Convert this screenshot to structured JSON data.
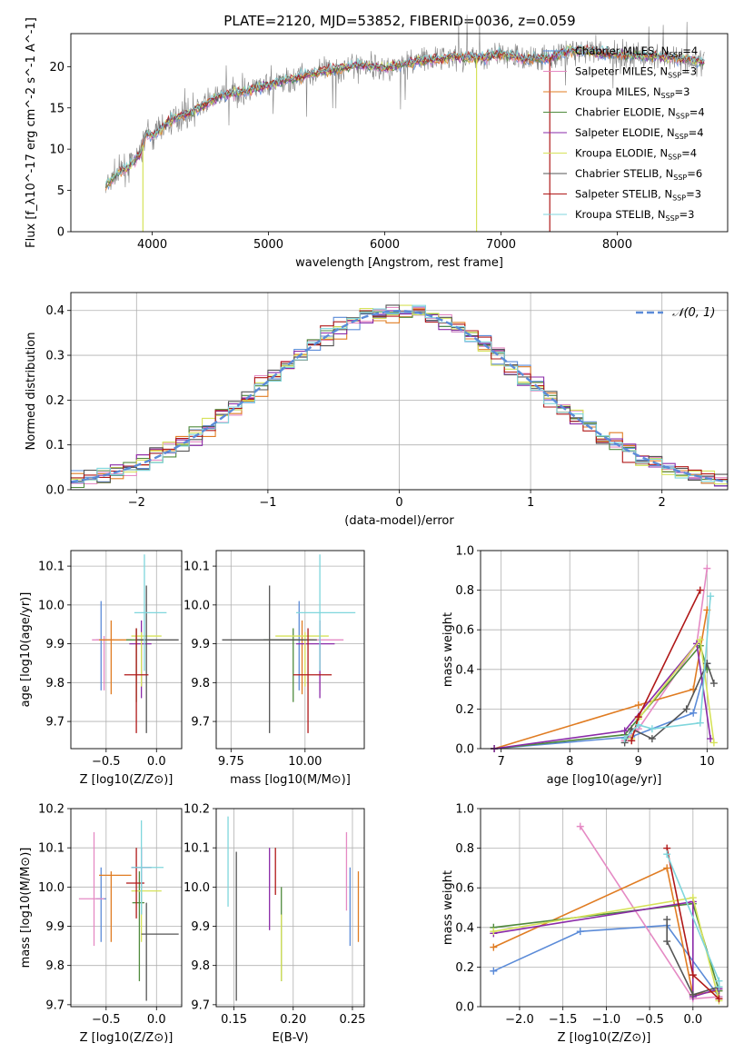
{
  "figure": {
    "title": "PLATE=2120, MJD=53852, FIBERID=0036, z=0.059"
  },
  "colors": {
    "chabrier_miles": "#5b8bd8",
    "salpeter_miles": "#e58ac4",
    "kroupa_miles": "#e07c22",
    "chabrier_elodie": "#4f8a3c",
    "salpeter_elodie": "#8a2aa8",
    "kroupa_elodie": "#d6e25a",
    "chabrier_stelib": "#555555",
    "salpeter_stelib": "#b01818",
    "kroupa_stelib": "#7fd6dc",
    "normal_curve": "#5b8bd8",
    "grid": "#b0b0b0",
    "data_spectrum": "#808080"
  },
  "chart_data": [
    {
      "id": "spectrum",
      "type": "line",
      "xlabel": "wavelength [Angstrom, rest frame]",
      "ylabel": "Flux [f_λ10^-17 erg cm^-2 s^-1 A^-1]",
      "xlim": [
        3300,
        8950
      ],
      "ylim": [
        0,
        24
      ],
      "xticks": [
        4000,
        5000,
        6000,
        7000,
        8000
      ],
      "yticks": [
        0,
        5,
        10,
        15,
        20
      ],
      "grid": false,
      "legend_position": "right",
      "continuum_points": {
        "x": [
          3600,
          3700,
          3800,
          3900,
          3950,
          4000,
          4100,
          4200,
          4300,
          4400,
          4600,
          4800,
          5000,
          5200,
          5400,
          5600,
          5800,
          6000,
          6200,
          6400,
          6600,
          6800,
          7000,
          7200,
          7400,
          7600,
          8000,
          8400,
          8800
        ],
        "y": [
          5.5,
          7.0,
          8.0,
          9.5,
          12.0,
          11.5,
          12.8,
          13.8,
          14.2,
          15.0,
          16.5,
          17.0,
          17.8,
          18.5,
          19.2,
          19.8,
          20.2,
          19.8,
          20.5,
          20.8,
          21.2,
          21.0,
          21.5,
          21.0,
          21.0,
          22.0,
          21.5,
          21.2,
          20.5
        ]
      },
      "legend": [
        "Chabrier MILES, N_SSP=4",
        "Salpeter MILES, N_SSP=3",
        "Kroupa MILES, N_SSP=3",
        "Chabrier ELODIE, N_SSP=4",
        "Salpeter ELODIE, N_SSP=4",
        "Kroupa ELODIE, N_SSP=4",
        "Chabrier STELIB, N_SSP=6",
        "Salpeter STELIB, N_SSP=3",
        "Kroupa STELIB, N_SSP=3"
      ]
    },
    {
      "id": "residuals",
      "type": "step",
      "xlabel": "(data-model)/error",
      "ylabel": "Normed distribution",
      "xlim": [
        -2.5,
        2.5
      ],
      "ylim": [
        0,
        0.44
      ],
      "xticks": [
        -2,
        -1,
        0,
        1,
        2
      ],
      "yticks": [
        0.0,
        0.1,
        0.2,
        0.3,
        0.4
      ],
      "grid": true,
      "legend": "𝒩(0, 1)",
      "legend_position": "top-right",
      "bin_width": 0.1
    },
    {
      "id": "age_vs_Z",
      "type": "errorbar",
      "xlabel": "Z [log10(Z/Z⊙)]",
      "ylabel": "age  [log10(age/yr)]",
      "xlim": [
        -0.85,
        0.25
      ],
      "ylim": [
        9.63,
        10.14
      ],
      "xticks": [
        -0.5,
        0.0
      ],
      "yticks": [
        9.7,
        9.8,
        9.9,
        10.0,
        10.1
      ],
      "grid": true,
      "points": [
        {
          "model": "chabrier_miles",
          "x": -0.55,
          "xerr": [
            0.05,
            0.05
          ],
          "y": 9.91,
          "yerr": [
            0.13,
            0.1
          ]
        },
        {
          "model": "salpeter_miles",
          "x": -0.52,
          "xerr": [
            0.12,
            0.1
          ],
          "y": 9.91,
          "yerr": [
            0.13,
            0.01
          ]
        },
        {
          "model": "kroupa_miles",
          "x": -0.45,
          "xerr": [
            0.12,
            0.2
          ],
          "y": 9.91,
          "yerr": [
            0.14,
            0.05
          ]
        },
        {
          "model": "chabrier_elodie",
          "x": -0.2,
          "xerr": [
            0.1,
            0.1
          ],
          "y": 9.91,
          "yerr": [
            0.16,
            0.03
          ]
        },
        {
          "model": "salpeter_elodie",
          "x": -0.15,
          "xerr": [
            0.12,
            0.1
          ],
          "y": 9.9,
          "yerr": [
            0.14,
            0.06
          ]
        },
        {
          "model": "kroupa_elodie",
          "x": -0.15,
          "xerr": [
            0.1,
            0.2
          ],
          "y": 9.92,
          "yerr": [
            0.13,
            0.01
          ]
        },
        {
          "model": "chabrier_stelib",
          "x": -0.1,
          "xerr": [
            0.1,
            0.32
          ],
          "y": 9.91,
          "yerr": [
            0.24,
            0.14
          ]
        },
        {
          "model": "salpeter_stelib",
          "x": -0.2,
          "xerr": [
            0.12,
            0.12
          ],
          "y": 9.82,
          "yerr": [
            0.15,
            0.12
          ]
        },
        {
          "model": "kroupa_stelib",
          "x": -0.12,
          "xerr": [
            0.1,
            0.22
          ],
          "y": 9.98,
          "yerr": [
            0.15,
            0.15
          ]
        }
      ]
    },
    {
      "id": "age_vs_mass",
      "type": "errorbar",
      "xlabel": "mass [log10(M/M⊙)]",
      "ylabel": "",
      "xlim": [
        9.7,
        10.2
      ],
      "ylim": [
        9.63,
        10.14
      ],
      "xticks": [
        9.75,
        10.0
      ],
      "yticks": [
        9.7,
        9.8,
        9.9,
        10.0,
        10.1
      ],
      "grid": true,
      "points": [
        {
          "model": "chabrier_miles",
          "x": 9.98,
          "xerr": [
            0.12,
            0.04
          ],
          "y": 9.91,
          "yerr": [
            0.13,
            0.1
          ]
        },
        {
          "model": "salpeter_miles",
          "x": 10.05,
          "xerr": [
            0.08,
            0.08
          ],
          "y": 9.91,
          "yerr": [
            0.13,
            0.01
          ]
        },
        {
          "model": "kroupa_miles",
          "x": 9.99,
          "xerr": [
            0.12,
            0.04
          ],
          "y": 9.91,
          "yerr": [
            0.14,
            0.05
          ]
        },
        {
          "model": "chabrier_elodie",
          "x": 9.96,
          "xerr": [
            0.1,
            0.04
          ],
          "y": 9.91,
          "yerr": [
            0.16,
            0.03
          ]
        },
        {
          "model": "salpeter_elodie",
          "x": 10.05,
          "xerr": [
            0.08,
            0.05
          ],
          "y": 9.9,
          "yerr": [
            0.14,
            0.06
          ]
        },
        {
          "model": "kroupa_elodie",
          "x": 10.0,
          "xerr": [
            0.1,
            0.08
          ],
          "y": 9.92,
          "yerr": [
            0.13,
            0.01
          ]
        },
        {
          "model": "chabrier_stelib",
          "x": 9.88,
          "xerr": [
            0.16,
            0.16
          ],
          "y": 9.91,
          "yerr": [
            0.24,
            0.14
          ]
        },
        {
          "model": "salpeter_stelib",
          "x": 10.01,
          "xerr": [
            0.05,
            0.08
          ],
          "y": 9.82,
          "yerr": [
            0.15,
            0.12
          ]
        },
        {
          "model": "kroupa_stelib",
          "x": 10.05,
          "xerr": [
            0.08,
            0.12
          ],
          "y": 9.98,
          "yerr": [
            0.15,
            0.15
          ]
        }
      ]
    },
    {
      "id": "mw_vs_age",
      "type": "line",
      "xlabel": "age  [log10(age/yr)]",
      "ylabel": "mass weight",
      "xlim": [
        6.7,
        10.3
      ],
      "ylim": [
        0,
        1.0
      ],
      "xticks": [
        7,
        8,
        9,
        10
      ],
      "yticks": [
        0.0,
        0.2,
        0.4,
        0.6,
        0.8,
        1.0
      ],
      "grid": true,
      "series": [
        {
          "model": "chabrier_miles",
          "x": [
            6.9,
            8.9,
            9.8,
            10.0
          ],
          "y": [
            0.0,
            0.06,
            0.18,
            0.43
          ]
        },
        {
          "model": "salpeter_miles",
          "x": [
            8.8,
            9.0,
            9.85,
            10.0
          ],
          "y": [
            0.04,
            0.1,
            0.53,
            0.91
          ]
        },
        {
          "model": "kroupa_miles",
          "x": [
            6.9,
            9.0,
            9.8,
            10.0
          ],
          "y": [
            0.0,
            0.22,
            0.3,
            0.7
          ]
        },
        {
          "model": "chabrier_elodie",
          "x": [
            6.9,
            8.8,
            9.9,
            10.0
          ],
          "y": [
            0.0,
            0.07,
            0.52,
            0.4
          ]
        },
        {
          "model": "salpeter_elodie",
          "x": [
            6.9,
            8.8,
            9.85,
            10.05
          ],
          "y": [
            0.0,
            0.09,
            0.53,
            0.05
          ]
        },
        {
          "model": "kroupa_elodie",
          "x": [
            8.9,
            9.0,
            9.9,
            10.1
          ],
          "y": [
            0.05,
            0.15,
            0.55,
            0.03
          ]
        },
        {
          "model": "chabrier_stelib",
          "x": [
            8.8,
            8.9,
            9.2,
            9.7,
            10.0,
            10.1
          ],
          "y": [
            0.03,
            0.1,
            0.05,
            0.2,
            0.43,
            0.33
          ]
        },
        {
          "model": "salpeter_stelib",
          "x": [
            8.9,
            9.0,
            9.9
          ],
          "y": [
            0.04,
            0.16,
            0.8
          ]
        },
        {
          "model": "kroupa_stelib",
          "x": [
            8.8,
            9.0,
            9.2,
            9.9,
            10.05
          ],
          "y": [
            0.05,
            0.12,
            0.1,
            0.13,
            0.77
          ]
        }
      ]
    },
    {
      "id": "mass_vs_Z",
      "type": "errorbar",
      "xlabel": "Z [log10(Z/Z⊙)]",
      "ylabel": "mass [log10(M/M⊙)]",
      "xlim": [
        -0.85,
        0.25
      ],
      "ylim": [
        9.695,
        10.2
      ],
      "xticks": [
        -0.5,
        0.0
      ],
      "yticks": [
        9.7,
        9.8,
        9.9,
        10.0,
        10.1,
        10.2
      ],
      "grid": true,
      "points": [
        {
          "model": "chabrier_miles",
          "x": -0.55,
          "xerr": [
            0.05,
            0.05
          ],
          "y": 9.97,
          "yerr": [
            0.11,
            0.08
          ]
        },
        {
          "model": "salpeter_miles",
          "x": -0.62,
          "xerr": [
            0.15,
            0.1
          ],
          "y": 9.97,
          "yerr": [
            0.12,
            0.17
          ]
        },
        {
          "model": "kroupa_miles",
          "x": -0.45,
          "xerr": [
            0.12,
            0.2
          ],
          "y": 10.03,
          "yerr": [
            0.17,
            0.01
          ]
        },
        {
          "model": "chabrier_elodie",
          "x": -0.17,
          "xerr": [
            0.07,
            0.05
          ],
          "y": 9.96,
          "yerr": [
            0.2,
            0.08
          ]
        },
        {
          "model": "salpeter_elodie",
          "x": -0.15,
          "xerr": [
            0.1,
            0.1
          ],
          "y": 10.05,
          "yerr": [
            0.12,
            0.05
          ]
        },
        {
          "model": "kroupa_elodie",
          "x": -0.15,
          "xerr": [
            0.1,
            0.2
          ],
          "y": 9.99,
          "yerr": [
            0.13,
            0.01
          ]
        },
        {
          "model": "chabrier_stelib",
          "x": -0.1,
          "xerr": [
            0.05,
            0.32
          ],
          "y": 9.88,
          "yerr": [
            0.17,
            0.08
          ]
        },
        {
          "model": "salpeter_stelib",
          "x": -0.2,
          "xerr": [
            0.1,
            0.08
          ],
          "y": 10.01,
          "yerr": [
            0.09,
            0.09
          ]
        },
        {
          "model": "kroupa_stelib",
          "x": -0.15,
          "xerr": [
            0.1,
            0.22
          ],
          "y": 10.05,
          "yerr": [
            0.12,
            0.12
          ]
        }
      ]
    },
    {
      "id": "mass_vs_ebv",
      "type": "errorbar",
      "xlabel": "E(B-V)",
      "ylabel": "",
      "xlim": [
        0.135,
        0.26
      ],
      "ylim": [
        9.695,
        10.2
      ],
      "xticks": [
        0.15,
        0.2,
        0.25
      ],
      "yticks": [
        9.7,
        9.8,
        9.9,
        10.0,
        10.1,
        10.2
      ],
      "grid": true,
      "points": [
        {
          "model": "chabrier_miles",
          "x": 0.248,
          "xerr": [
            0,
            0
          ],
          "y": 9.93,
          "yerr": [
            0.08,
            0.12
          ]
        },
        {
          "model": "salpeter_miles",
          "x": 0.245,
          "xerr": [
            0,
            0
          ],
          "y": 10.05,
          "yerr": [
            0.11,
            0.09
          ]
        },
        {
          "model": "kroupa_miles",
          "x": 0.255,
          "xerr": [
            0,
            0
          ],
          "y": 9.94,
          "yerr": [
            0.08,
            0.1
          ]
        },
        {
          "model": "chabrier_elodie",
          "x": 0.19,
          "xerr": [
            0,
            0
          ],
          "y": 9.88,
          "yerr": [
            0.12,
            0.12
          ]
        },
        {
          "model": "salpeter_elodie",
          "x": 0.18,
          "xerr": [
            0,
            0
          ],
          "y": 10.0,
          "yerr": [
            0.11,
            0.1
          ]
        },
        {
          "model": "kroupa_elodie",
          "x": 0.19,
          "xerr": [
            0,
            0
          ],
          "y": 9.9,
          "yerr": [
            0.14,
            0.03
          ]
        },
        {
          "model": "chabrier_stelib",
          "x": 0.152,
          "xerr": [
            0,
            0
          ],
          "y": 9.99,
          "yerr": [
            0.28,
            0.1
          ]
        },
        {
          "model": "salpeter_stelib",
          "x": 0.185,
          "xerr": [
            0,
            0
          ],
          "y": 10.04,
          "yerr": [
            0.06,
            0.06
          ]
        },
        {
          "model": "kroupa_stelib",
          "x": 0.145,
          "xerr": [
            0,
            0
          ],
          "y": 10.06,
          "yerr": [
            0.11,
            0.12
          ]
        }
      ]
    },
    {
      "id": "mw_vs_Z",
      "type": "line",
      "xlabel": "Z [log10(Z/Z⊙)]",
      "ylabel": "mass weight",
      "xlim": [
        -2.45,
        0.4
      ],
      "ylim": [
        0,
        1.0
      ],
      "xticks": [
        -2.0,
        -1.5,
        -1.0,
        -0.5,
        0.0
      ],
      "yticks": [
        0.0,
        0.2,
        0.4,
        0.6,
        0.8,
        1.0
      ],
      "grid": true,
      "series": [
        {
          "model": "chabrier_miles",
          "x": [
            -2.3,
            -1.3,
            -0.3,
            0.3
          ],
          "y": [
            0.18,
            0.38,
            0.41,
            0.05
          ]
        },
        {
          "model": "salpeter_miles",
          "x": [
            -1.3,
            0.0,
            0.3
          ],
          "y": [
            0.91,
            0.04,
            0.05
          ]
        },
        {
          "model": "kroupa_miles",
          "x": [
            -2.3,
            -0.3,
            0.0,
            0.3
          ],
          "y": [
            0.3,
            0.7,
            0.06,
            0.08
          ]
        },
        {
          "model": "chabrier_elodie",
          "x": [
            -2.3,
            0.0,
            0.3
          ],
          "y": [
            0.4,
            0.52,
            0.08
          ]
        },
        {
          "model": "salpeter_elodie",
          "x": [
            -2.3,
            0.0,
            0.0,
            0.3
          ],
          "y": [
            0.37,
            0.53,
            0.05,
            0.09
          ]
        },
        {
          "model": "kroupa_elodie",
          "x": [
            -2.3,
            0.0,
            0.3
          ],
          "y": [
            0.38,
            0.55,
            0.03
          ]
        },
        {
          "model": "chabrier_stelib",
          "x": [
            -0.3,
            -0.3,
            0.0,
            0.3
          ],
          "y": [
            0.44,
            0.33,
            0.06,
            0.1
          ]
        },
        {
          "model": "salpeter_stelib",
          "x": [
            -0.3,
            0.0,
            0.3
          ],
          "y": [
            0.8,
            0.16,
            0.04
          ]
        },
        {
          "model": "kroupa_stelib",
          "x": [
            -0.3,
            0.3,
            0.3
          ],
          "y": [
            0.77,
            0.13,
            0.1
          ]
        }
      ]
    }
  ]
}
